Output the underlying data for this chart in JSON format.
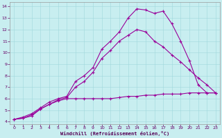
{
  "xlabel": "Windchill (Refroidissement éolien,°C)",
  "background_color": "#c8eef0",
  "line_color": "#990099",
  "xlim": [
    -0.5,
    23.5
  ],
  "ylim": [
    3.8,
    14.4
  ],
  "xticks": [
    0,
    1,
    2,
    3,
    4,
    5,
    6,
    7,
    8,
    9,
    10,
    11,
    12,
    13,
    14,
    15,
    16,
    17,
    18,
    19,
    20,
    21,
    22,
    23
  ],
  "yticks": [
    4,
    5,
    6,
    7,
    8,
    9,
    10,
    11,
    12,
    13,
    14
  ],
  "series1_x": [
    0,
    1,
    2,
    3,
    4,
    5,
    6,
    7,
    8,
    9,
    10,
    11,
    12,
    13,
    14,
    15,
    16,
    17,
    18,
    19,
    20,
    21,
    22,
    23
  ],
  "series1_y": [
    4.2,
    4.3,
    4.5,
    5.1,
    5.5,
    5.8,
    6.0,
    6.0,
    6.0,
    6.0,
    6.0,
    6.0,
    6.1,
    6.2,
    6.2,
    6.3,
    6.3,
    6.4,
    6.4,
    6.4,
    6.5,
    6.5,
    6.5,
    6.5
  ],
  "series2_x": [
    0,
    1,
    2,
    3,
    4,
    5,
    6,
    7,
    8,
    9,
    10,
    11,
    12,
    13,
    14,
    15,
    16,
    17,
    18,
    19,
    20,
    21,
    22,
    23
  ],
  "series2_y": [
    4.2,
    4.4,
    4.7,
    5.2,
    5.7,
    6.0,
    6.2,
    7.5,
    8.0,
    8.7,
    10.3,
    11.0,
    11.8,
    13.0,
    13.8,
    13.7,
    13.4,
    13.6,
    12.5,
    11.0,
    9.3,
    7.2,
    6.5,
    6.5
  ],
  "series3_x": [
    0,
    1,
    2,
    3,
    4,
    5,
    6,
    7,
    8,
    9,
    10,
    11,
    12,
    13,
    14,
    15,
    16,
    17,
    18,
    19,
    20,
    21,
    22,
    23
  ],
  "series3_y": [
    4.2,
    4.3,
    4.6,
    5.1,
    5.5,
    5.9,
    6.1,
    7.0,
    7.5,
    8.3,
    9.5,
    10.2,
    11.0,
    11.5,
    12.0,
    11.8,
    11.0,
    10.5,
    9.8,
    9.2,
    8.5,
    7.8,
    7.2,
    6.5
  ]
}
